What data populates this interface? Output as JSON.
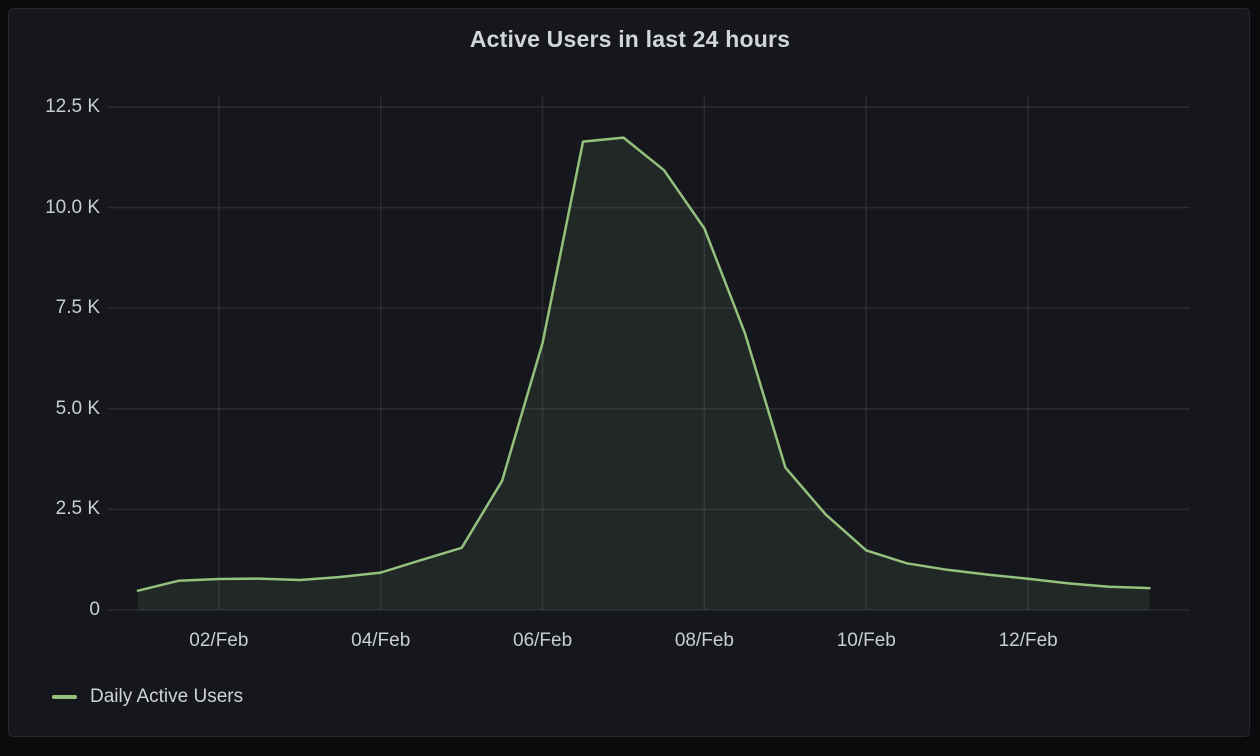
{
  "panel": {
    "title": "Active Users in last 24 hours"
  },
  "legend": {
    "items": [
      {
        "label": "Daily Active Users",
        "color": "#94c17e"
      }
    ]
  },
  "colors": {
    "page_background": "#0a0b0d",
    "panel_background": "#16171c",
    "panel_border": "#26282e",
    "grid": "rgba(204,214,224,0.11)",
    "tick_text": "#c9ced4",
    "title_text": "#d2d6db",
    "line": "#94c17e",
    "fill": "rgba(148,193,126,0.10)"
  },
  "chart_data": {
    "type": "area",
    "title": "Active Users in last 24 hours",
    "x_unit": "day of February (time axis)",
    "xlim": [
      0.63,
      14.0
    ],
    "ylim": [
      0,
      12500
    ],
    "grid": true,
    "legend_position": "bottom-left",
    "x_tick_days": [
      2,
      4,
      6,
      8,
      10,
      12
    ],
    "x_tick_labels": [
      "02/Feb",
      "04/Feb",
      "06/Feb",
      "08/Feb",
      "10/Feb",
      "12/Feb"
    ],
    "y_tick_values": [
      0,
      2500,
      5000,
      7500,
      10000,
      12500
    ],
    "y_tick_labels": [
      "0",
      "2.5 K",
      "5.0 K",
      "7.5 K",
      "10.0 K",
      "12.5 K"
    ],
    "series": [
      {
        "name": "Daily Active Users",
        "color": "#94c17e",
        "points": [
          [
            1.0,
            480
          ],
          [
            1.5,
            725
          ],
          [
            2.0,
            770
          ],
          [
            2.5,
            780
          ],
          [
            3.0,
            745
          ],
          [
            3.5,
            820
          ],
          [
            4.0,
            930
          ],
          [
            4.5,
            1240
          ],
          [
            5.0,
            1545
          ],
          [
            5.5,
            3210
          ],
          [
            6.0,
            6640
          ],
          [
            6.5,
            11640
          ],
          [
            7.0,
            11740
          ],
          [
            7.5,
            10930
          ],
          [
            8.0,
            9480
          ],
          [
            8.5,
            6880
          ],
          [
            9.0,
            3540
          ],
          [
            9.5,
            2370
          ],
          [
            10.0,
            1480
          ],
          [
            10.5,
            1160
          ],
          [
            11.0,
            1000
          ],
          [
            11.5,
            880
          ],
          [
            12.0,
            775
          ],
          [
            12.5,
            660
          ],
          [
            13.0,
            580
          ],
          [
            13.5,
            545
          ]
        ]
      }
    ]
  }
}
